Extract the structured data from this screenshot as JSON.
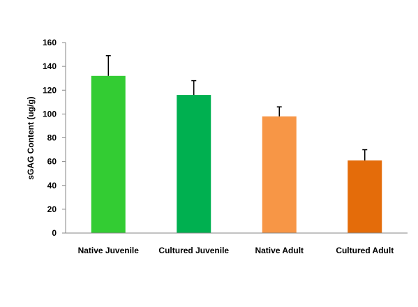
{
  "chart_data": {
    "type": "bar",
    "title": "",
    "xlabel": "",
    "ylabel": "sGAG Content (ug/g)",
    "ylim": [
      0,
      160
    ],
    "yticks": [
      0,
      20,
      40,
      60,
      80,
      100,
      120,
      140,
      160
    ],
    "grid": false,
    "categories": [
      "Native Juvenile",
      "Cultured Juvenile",
      "Native Adult",
      "Cultured Adult"
    ],
    "values": [
      132,
      116,
      98,
      61
    ],
    "error_upper": [
      17,
      12,
      8,
      9
    ],
    "colors": [
      "#33cc33",
      "#00b050",
      "#f79646",
      "#e46c0a"
    ]
  }
}
